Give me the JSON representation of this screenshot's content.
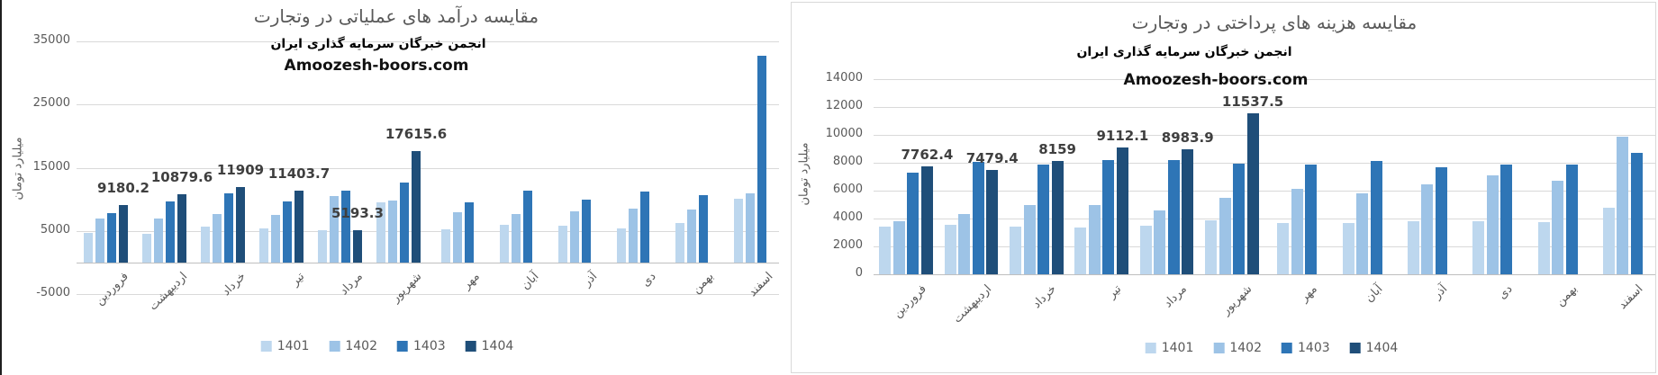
{
  "window": {
    "background": "#ffffff",
    "left_border_color": "#1f1f1f",
    "panel_border_color": "#d9d9d9"
  },
  "chart_data": [
    {
      "type": "bar",
      "title": "مقایسه درآمد های عملیاتی در وتجارت",
      "subtitle": "انجمن خبرگان سرمایه گذاری ایران",
      "watermark": "Amoozesh-boors.com",
      "ylabel": "میلیارد تومان",
      "xlabel": "",
      "categories": [
        "فروردین",
        "اردیبهشت",
        "خرداد",
        "تیر",
        "مرداد",
        "شهریور",
        "مهر",
        "آبان",
        "آذر",
        "دی",
        "بهمن",
        "اسفند"
      ],
      "series": [
        {
          "name": "1401",
          "color": "#BDD7EE",
          "values": [
            4700,
            4500,
            5700,
            5400,
            5100,
            9600,
            5300,
            6000,
            5900,
            5400,
            6300,
            10100
          ]
        },
        {
          "name": "1402",
          "color": "#9DC3E6",
          "values": [
            7000,
            7000,
            7700,
            7600,
            10500,
            9800,
            8000,
            7700,
            8100,
            8600,
            8400,
            10900
          ]
        },
        {
          "name": "1403",
          "color": "#2E75B6",
          "values": [
            7800,
            9700,
            11000,
            9700,
            11400,
            12700,
            9600,
            11400,
            10000,
            11300,
            10700,
            32800
          ]
        },
        {
          "name": "1404",
          "color": "#1F4E79",
          "values": [
            9180.2,
            10879.6,
            11909,
            11403.7,
            5193.3,
            17615.6,
            null,
            null,
            null,
            null,
            null,
            null
          ]
        }
      ],
      "data_labels": {
        "series": "1404",
        "values": [
          "9180.2",
          "10879.6",
          "11909",
          "11403.7",
          "5193.3",
          "17615.6"
        ]
      },
      "ylim": [
        -5000,
        35000
      ],
      "yticks": [
        35000,
        25000,
        15000,
        5000,
        -5000
      ],
      "grid": true,
      "legend": [
        "1401",
        "1402",
        "1403",
        "1404"
      ],
      "legend_position": "bottom"
    },
    {
      "type": "bar",
      "title": "مقایسه هزینه های پرداختی در وتجارت",
      "subtitle": "انجمن خبرگان سرمایه گذاری ایران",
      "watermark": "Amoozesh-boors.com",
      "ylabel": "میلیارد تومان",
      "xlabel": "",
      "categories": [
        "فروردین",
        "اردیبهشت",
        "خرداد",
        "تیر",
        "مرداد",
        "شهریور",
        "مهر",
        "آبان",
        "آذر",
        "دی",
        "بهمن",
        "اسفند"
      ],
      "series": [
        {
          "name": "1401",
          "color": "#BDD7EE",
          "values": [
            3400,
            3550,
            3400,
            3350,
            3500,
            3850,
            3700,
            3700,
            3800,
            3800,
            3750,
            4770
          ]
        },
        {
          "name": "1402",
          "color": "#9DC3E6",
          "values": [
            3800,
            4350,
            5000,
            5000,
            4550,
            5500,
            6100,
            5800,
            6450,
            7100,
            6700,
            9900
          ]
        },
        {
          "name": "1403",
          "color": "#2E75B6",
          "values": [
            7300,
            8050,
            7900,
            8200,
            8200,
            7950,
            7900,
            8150,
            7650,
            7870,
            7870,
            8700
          ]
        },
        {
          "name": "1404",
          "color": "#1F4E79",
          "values": [
            7762.4,
            7479.4,
            8159,
            9112.1,
            8983.9,
            11537.5,
            null,
            null,
            null,
            null,
            null,
            null
          ]
        }
      ],
      "data_labels": {
        "series": "1404",
        "values": [
          "7762.4",
          "7479.4",
          "8159",
          "9112.1",
          "8983.9",
          "11537.5"
        ]
      },
      "ylim": [
        0,
        14000
      ],
      "yticks": [
        14000,
        12000,
        10000,
        8000,
        6000,
        4000,
        2000,
        0
      ],
      "grid": true,
      "legend": [
        "1401",
        "1402",
        "1403",
        "1404"
      ],
      "legend_position": "bottom"
    }
  ]
}
